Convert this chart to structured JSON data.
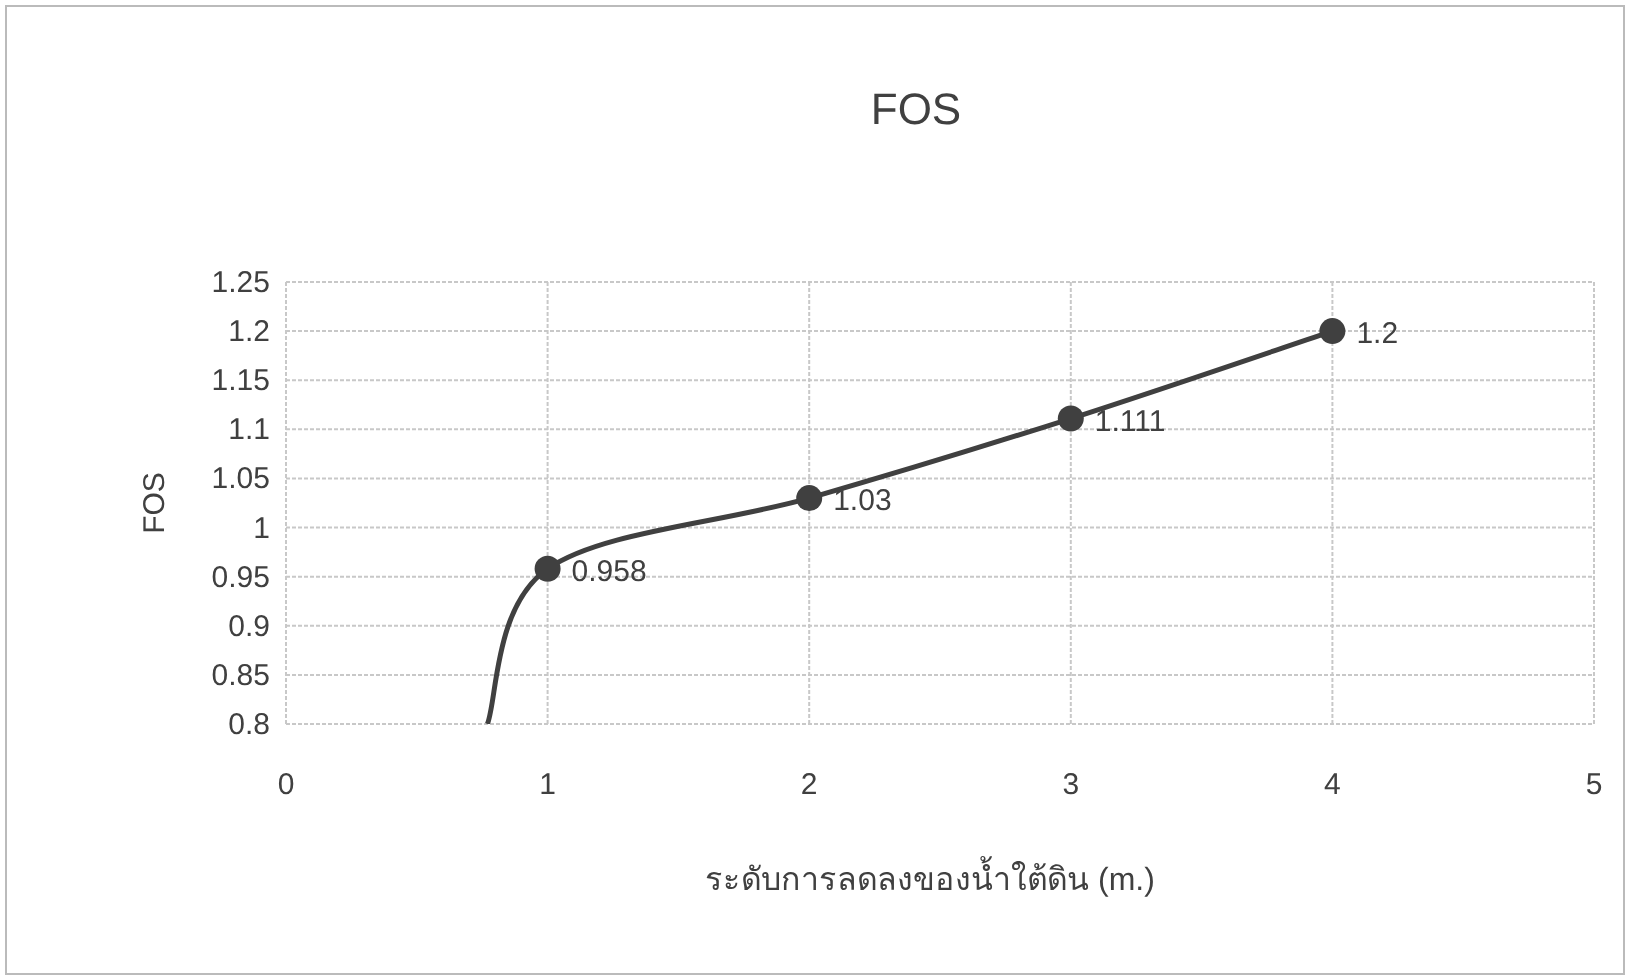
{
  "chart_data": {
    "type": "line",
    "title": "FOS",
    "xlabel": "ระดับการลดลงของน้ำใต้ดิน (m.)",
    "ylabel": "FOS",
    "xlim": [
      0,
      5
    ],
    "xticks": [
      0,
      1,
      2,
      3,
      4,
      5
    ],
    "ylim": [
      0.8,
      1.25
    ],
    "yticks": [
      0.8,
      0.85,
      0.9,
      0.95,
      1,
      1.05,
      1.1,
      1.15,
      1.2,
      1.25
    ],
    "grid": true,
    "series": [
      {
        "type": "line",
        "color": "#404040",
        "x": [
          0.77,
          1,
          2,
          3,
          4
        ],
        "values": [
          0.8,
          0.958,
          1.03,
          1.111,
          1.2
        ]
      },
      {
        "type": "scatter",
        "color": "#404040",
        "marker": "circle",
        "x": [
          1,
          2,
          3,
          4
        ],
        "values": [
          0.958,
          1.03,
          1.111,
          1.2
        ],
        "value_labels": [
          "0.958",
          "1.03",
          "1.111",
          "1.2"
        ]
      }
    ]
  }
}
